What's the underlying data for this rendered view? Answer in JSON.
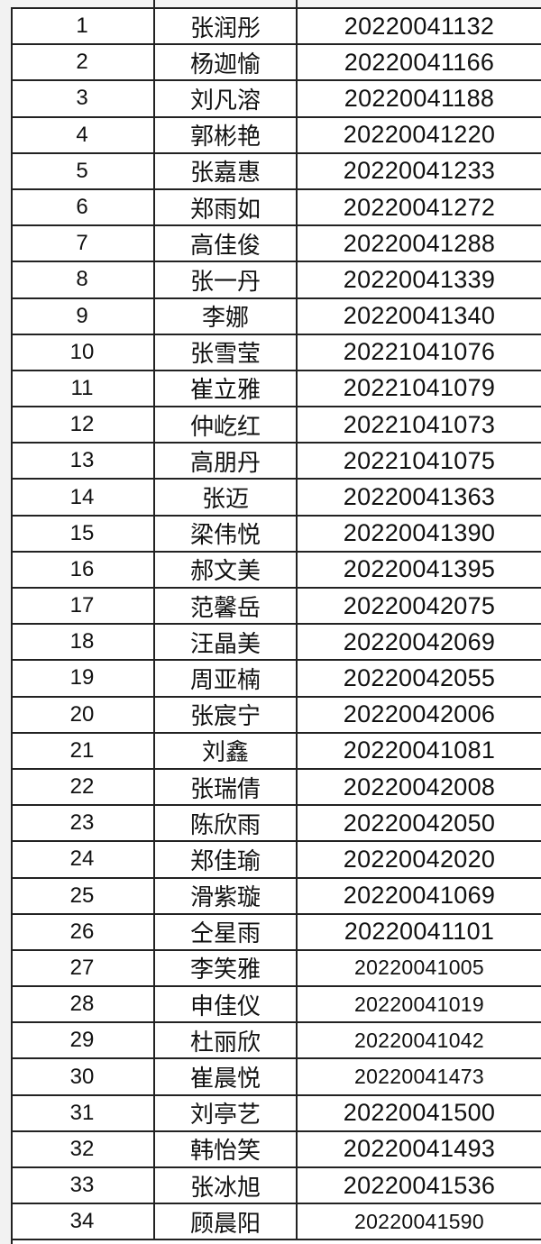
{
  "table": {
    "rows": [
      {
        "no": "1",
        "name": "张润彤",
        "id": "20220041132"
      },
      {
        "no": "2",
        "name": "杨迦愉",
        "id": "20220041166"
      },
      {
        "no": "3",
        "name": "刘凡溶",
        "id": "20220041188"
      },
      {
        "no": "4",
        "name": "郭彬艳",
        "id": "20220041220"
      },
      {
        "no": "5",
        "name": "张嘉惠",
        "id": "20220041233"
      },
      {
        "no": "6",
        "name": "郑雨如",
        "id": "20220041272"
      },
      {
        "no": "7",
        "name": "高佳俊",
        "id": "20220041288"
      },
      {
        "no": "8",
        "name": "张一丹",
        "id": "20220041339"
      },
      {
        "no": "9",
        "name": "李娜",
        "id": "20220041340"
      },
      {
        "no": "10",
        "name": "张雪莹",
        "id": "20221041076"
      },
      {
        "no": "11",
        "name": "崔立雅",
        "id": "20221041079"
      },
      {
        "no": "12",
        "name": "仲屹红",
        "id": "20221041073"
      },
      {
        "no": "13",
        "name": "高朋丹",
        "id": "20221041075"
      },
      {
        "no": "14",
        "name": "张迈",
        "id": "20220041363"
      },
      {
        "no": "15",
        "name": "梁伟悦",
        "id": "20220041390"
      },
      {
        "no": "16",
        "name": "郝文美",
        "id": "20220041395"
      },
      {
        "no": "17",
        "name": "范馨岳",
        "id": "20220042075"
      },
      {
        "no": "18",
        "name": "汪晶美",
        "id": "20220042069"
      },
      {
        "no": "19",
        "name": "周亚楠",
        "id": "20220042055"
      },
      {
        "no": "20",
        "name": "张宸宁",
        "id": "20220042006"
      },
      {
        "no": "21",
        "name": "刘鑫",
        "id": "20220041081"
      },
      {
        "no": "22",
        "name": "张瑞倩",
        "id": "20220042008"
      },
      {
        "no": "23",
        "name": "陈欣雨",
        "id": "20220042050"
      },
      {
        "no": "24",
        "name": "郑佳瑜",
        "id": "20220042020"
      },
      {
        "no": "25",
        "name": "滑紫璇",
        "id": "20220041069"
      },
      {
        "no": "26",
        "name": "仝星雨",
        "id": "20220041101"
      },
      {
        "no": "27",
        "name": "李笑雅",
        "id": "20220041005"
      },
      {
        "no": "28",
        "name": "申佳仪",
        "id": "20220041019"
      },
      {
        "no": "29",
        "name": "杜丽欣",
        "id": "20220041042"
      },
      {
        "no": "30",
        "name": "崔晨悦",
        "id": "20220041473"
      },
      {
        "no": "31",
        "name": "刘亭艺",
        "id": "20220041500"
      },
      {
        "no": "32",
        "name": "韩怡笑",
        "id": "20220041493"
      },
      {
        "no": "33",
        "name": "张冰旭",
        "id": "20220041536"
      },
      {
        "no": "34",
        "name": "顾晨阳",
        "id": "20220041590"
      }
    ]
  }
}
